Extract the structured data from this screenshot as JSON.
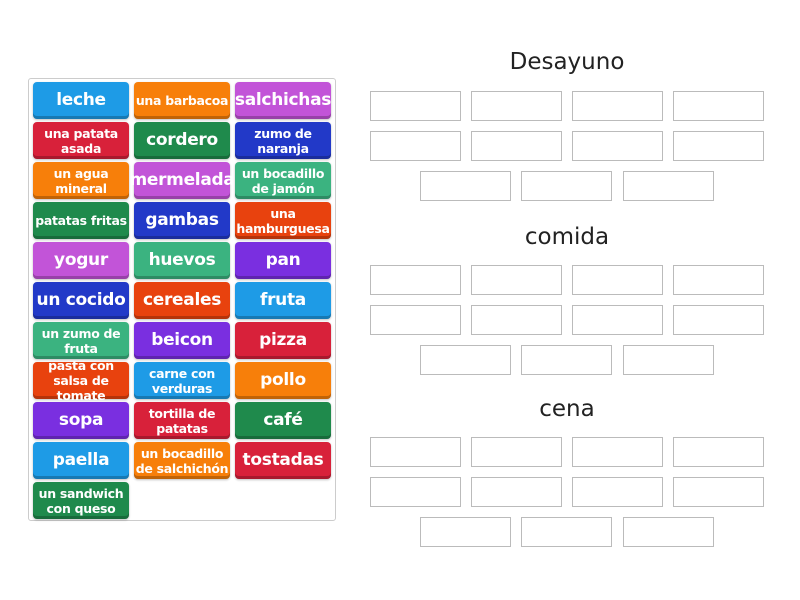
{
  "tiles": [
    {
      "label": "leche",
      "color": "#1e9be6"
    },
    {
      "label": "una barbacoa",
      "color": "#f77f0a"
    },
    {
      "label": "salchichas",
      "color": "#c254d8"
    },
    {
      "label": "una patata asada",
      "color": "#d8213a"
    },
    {
      "label": "cordero",
      "color": "#1f8a4c"
    },
    {
      "label": "zumo de naranja",
      "color": "#2239c8"
    },
    {
      "label": "un agua mineral",
      "color": "#f77f0a"
    },
    {
      "label": "mermelada",
      "color": "#c254d8"
    },
    {
      "label": "un bocadillo de jamón",
      "color": "#3bb380"
    },
    {
      "label": "patatas fritas",
      "color": "#1f8a4c"
    },
    {
      "label": "gambas",
      "color": "#2239c8"
    },
    {
      "label": "una hamburguesa",
      "color": "#e8420e"
    },
    {
      "label": "yogur",
      "color": "#c254d8"
    },
    {
      "label": "huevos",
      "color": "#3bb380"
    },
    {
      "label": "pan",
      "color": "#7a2fe0"
    },
    {
      "label": "un cocido",
      "color": "#2239c8"
    },
    {
      "label": "cereales",
      "color": "#e8420e"
    },
    {
      "label": "fruta",
      "color": "#1e9be6"
    },
    {
      "label": "un zumo de fruta",
      "color": "#3bb380"
    },
    {
      "label": "beicon",
      "color": "#7a2fe0"
    },
    {
      "label": "pizza",
      "color": "#d8213a"
    },
    {
      "label": "pasta con salsa de tomate",
      "color": "#e8420e"
    },
    {
      "label": "carne con verduras",
      "color": "#1e9be6"
    },
    {
      "label": "pollo",
      "color": "#f77f0a"
    },
    {
      "label": "sopa",
      "color": "#7a2fe0"
    },
    {
      "label": "tortilla de patatas",
      "color": "#d8213a"
    },
    {
      "label": "café",
      "color": "#1f8a4c"
    },
    {
      "label": "paella",
      "color": "#1e9be6"
    },
    {
      "label": "un bocadillo de salchichón",
      "color": "#f77f0a"
    },
    {
      "label": "tostadas",
      "color": "#d8213a"
    },
    {
      "label": "un sandwich con queso",
      "color": "#1f8a4c"
    }
  ],
  "groups": [
    {
      "title": "Desayuno"
    },
    {
      "title": "comida"
    },
    {
      "title": "cena"
    }
  ]
}
